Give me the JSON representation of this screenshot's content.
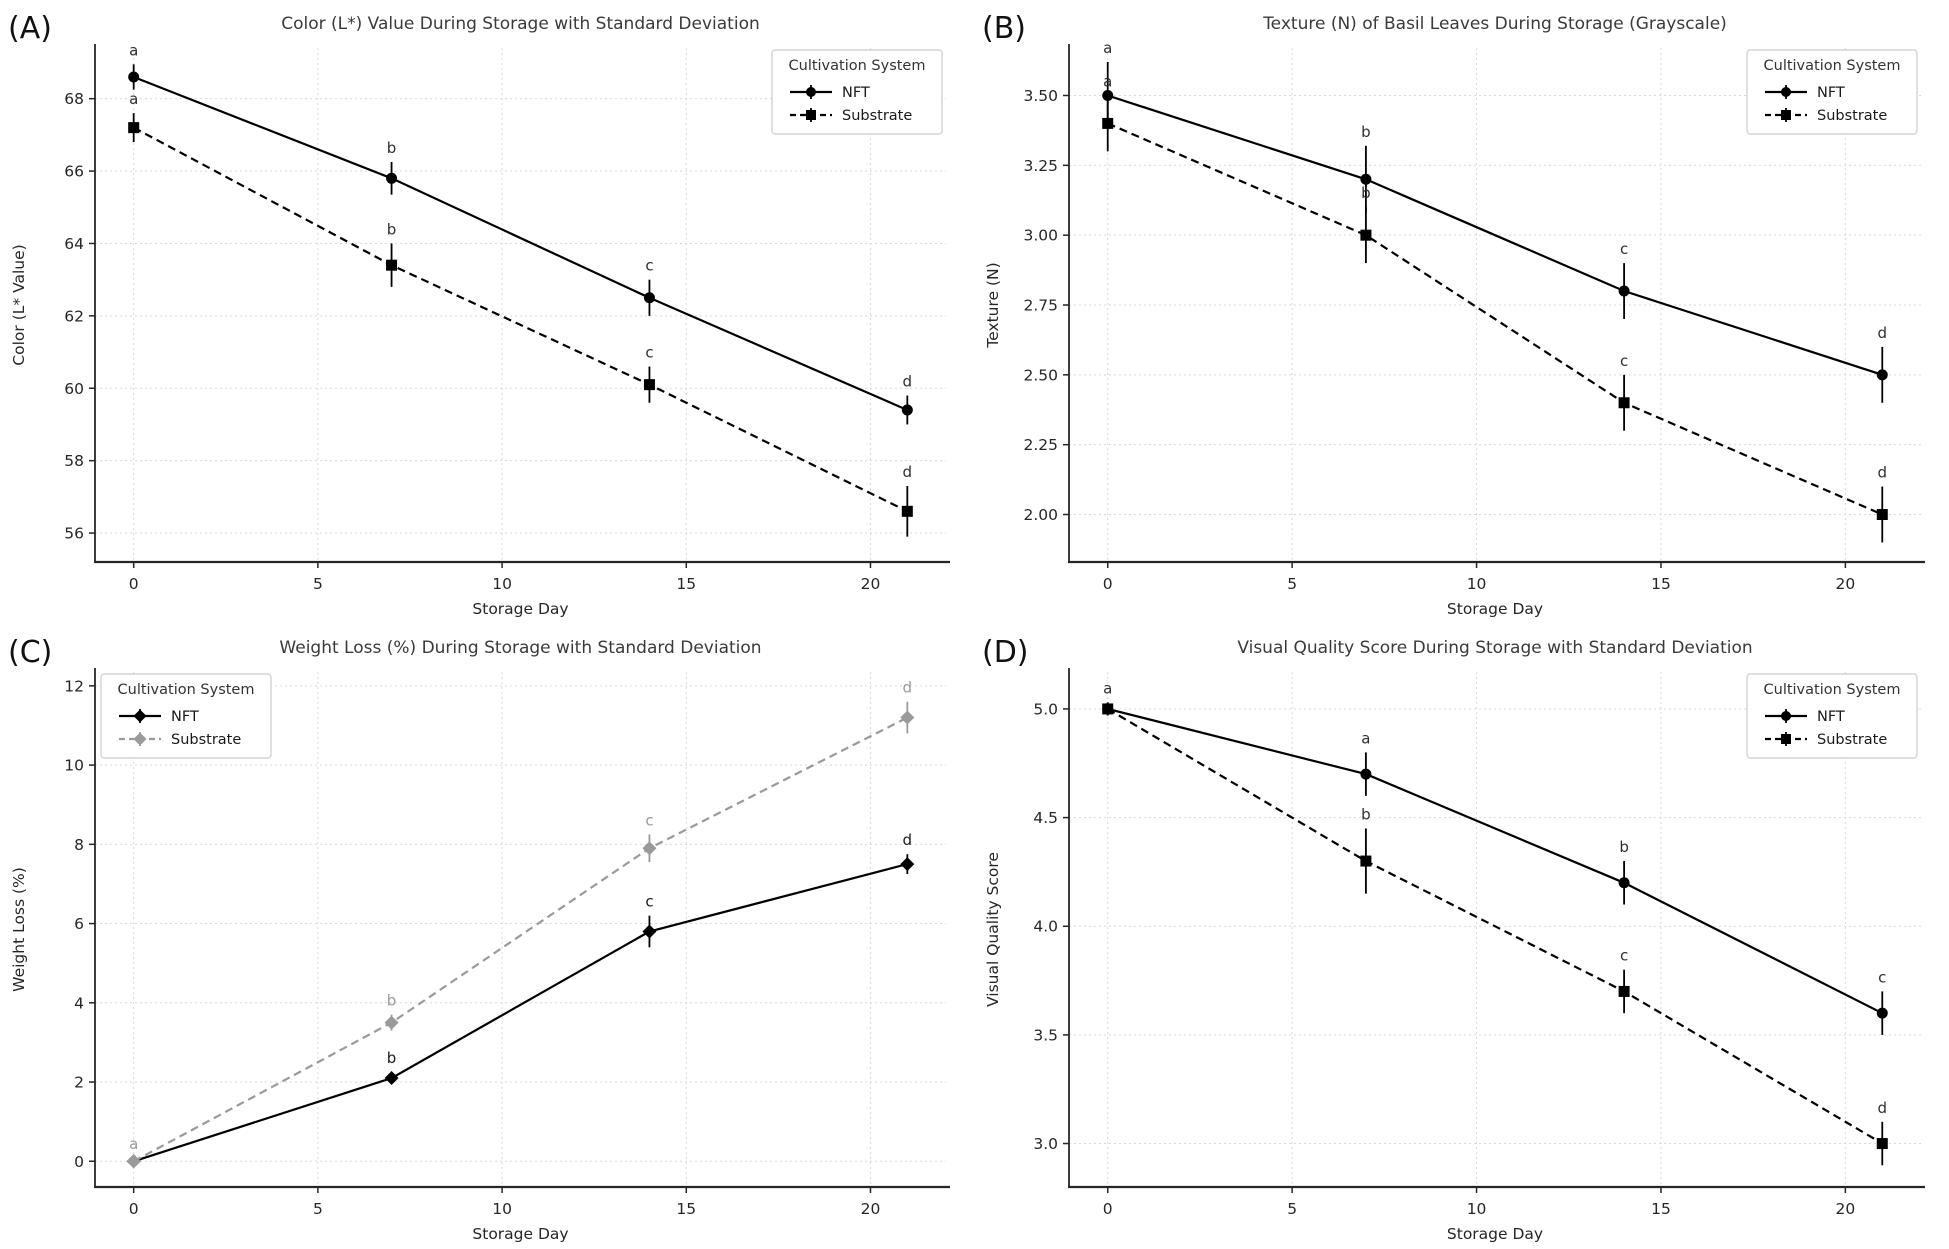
{
  "figure": {
    "description": "Four-panel line figure of basil leaf quality during storage",
    "x_axis_label": "Storage Day",
    "legend_title": "Cultivation System",
    "series_names": [
      "NFT",
      "Substrate"
    ]
  },
  "style": {
    "background": "#ffffff",
    "grid_color": "#d9d9d9",
    "spine_color": "#262626",
    "tick_label_color": "#262626",
    "title_color": "#3a3a3a",
    "panel_label_color": "#111111",
    "legend_border": "#cccccc",
    "legend_text": "#1a1a1a",
    "black_series": "#000000",
    "gray_series": "#9a9a9a"
  },
  "chart_data": [
    {
      "type": "line",
      "panel_label": "(A)",
      "title": "Color (L*) Value During Storage with Standard Deviation",
      "xlabel": "Storage Day",
      "ylabel": "Color (L* Value)",
      "x": [
        0,
        7,
        14,
        21
      ],
      "xlim": [
        -1.05,
        22.05
      ],
      "ylim": [
        55.2,
        69.4
      ],
      "xticks": {
        "values": [
          0,
          5,
          10,
          15,
          20
        ],
        "labels": [
          "0",
          "5",
          "10",
          "15",
          "20"
        ]
      },
      "yticks": {
        "values": [
          56,
          58,
          60,
          62,
          64,
          66,
          68
        ],
        "labels": [
          "56",
          "58",
          "60",
          "62",
          "64",
          "66",
          "68"
        ]
      },
      "grid": true,
      "legend": {
        "title": "Cultivation System",
        "position": "top-right"
      },
      "series": [
        {
          "name": "NFT",
          "values": [
            68.6,
            65.8,
            62.5,
            59.4
          ],
          "errors": [
            0.35,
            0.45,
            0.5,
            0.4
          ],
          "letters": [
            "a",
            "b",
            "c",
            "d"
          ],
          "color": "#000000",
          "linestyle": "solid",
          "marker": "circle",
          "letter_color": "#2f2f2f"
        },
        {
          "name": "Substrate",
          "values": [
            67.2,
            63.4,
            60.1,
            56.6
          ],
          "errors": [
            0.4,
            0.6,
            0.5,
            0.7
          ],
          "letters": [
            "a",
            "b",
            "c",
            "d"
          ],
          "color": "#000000",
          "linestyle": "dashed",
          "marker": "square",
          "letter_color": "#2f2f2f"
        }
      ]
    },
    {
      "type": "line",
      "panel_label": "(B)",
      "title": "Texture (N) of Basil Leaves During Storage (Grayscale)",
      "xlabel": "Storage Day",
      "ylabel": "Texture (N)",
      "x": [
        0,
        7,
        14,
        21
      ],
      "xlim": [
        -1.05,
        22.05
      ],
      "ylim": [
        1.83,
        3.67
      ],
      "xticks": {
        "values": [
          0,
          5,
          10,
          15,
          20
        ],
        "labels": [
          "0",
          "5",
          "10",
          "15",
          "20"
        ]
      },
      "yticks": {
        "values": [
          2.0,
          2.25,
          2.5,
          2.75,
          3.0,
          3.25,
          3.5
        ],
        "labels": [
          "2.00",
          "2.25",
          "2.50",
          "2.75",
          "3.00",
          "3.25",
          "3.50"
        ]
      },
      "grid": true,
      "legend": {
        "title": "Cultivation System",
        "position": "top-right"
      },
      "series": [
        {
          "name": "NFT",
          "values": [
            3.5,
            3.2,
            2.8,
            2.5
          ],
          "errors": [
            0.12,
            0.12,
            0.1,
            0.1
          ],
          "letters": [
            "a",
            "b",
            "c",
            "d"
          ],
          "color": "#000000",
          "linestyle": "solid",
          "marker": "circle",
          "letter_color": "#2f2f2f"
        },
        {
          "name": "Substrate",
          "values": [
            3.4,
            3.0,
            2.4,
            2.0
          ],
          "errors": [
            0.1,
            0.1,
            0.1,
            0.1
          ],
          "letters": [
            "a",
            "b",
            "c",
            "d"
          ],
          "color": "#000000",
          "linestyle": "dashed",
          "marker": "square",
          "letter_color": "#2f2f2f"
        }
      ]
    },
    {
      "type": "line",
      "panel_label": "(C)",
      "title": "Weight Loss (%) During Storage with Standard Deviation",
      "xlabel": "Storage Day",
      "ylabel": "Weight Loss (%)",
      "x": [
        0,
        7,
        14,
        21
      ],
      "xlim": [
        -1.05,
        22.05
      ],
      "ylim": [
        -0.65,
        12.35
      ],
      "xticks": {
        "values": [
          0,
          5,
          10,
          15,
          20
        ],
        "labels": [
          "0",
          "5",
          "10",
          "15",
          "20"
        ]
      },
      "yticks": {
        "values": [
          0,
          2,
          4,
          6,
          8,
          10,
          12
        ],
        "labels": [
          "0",
          "2",
          "4",
          "6",
          "8",
          "10",
          "12"
        ]
      },
      "grid": true,
      "legend": {
        "title": "Cultivation System",
        "position": "top-left"
      },
      "series": [
        {
          "name": "NFT",
          "values": [
            0.0,
            2.1,
            5.8,
            7.5
          ],
          "errors": [
            0.05,
            0.15,
            0.4,
            0.25
          ],
          "letters": [
            "",
            "b",
            "c",
            "d"
          ],
          "color": "#000000",
          "linestyle": "solid",
          "marker": "diamond",
          "letter_color": "#1a1a1a"
        },
        {
          "name": "Substrate",
          "values": [
            0.0,
            3.5,
            7.9,
            11.2
          ],
          "errors": [
            0.08,
            0.2,
            0.35,
            0.4
          ],
          "letters": [
            "a",
            "b",
            "c",
            "d"
          ],
          "color": "#9a9a9a",
          "linestyle": "dashed",
          "marker": "diamond",
          "letter_color": "#9a9a9a"
        }
      ]
    },
    {
      "type": "line",
      "panel_label": "(D)",
      "title": "Visual Quality Score During Storage with Standard Deviation",
      "xlabel": "Storage Day",
      "ylabel": "Visual Quality Score",
      "x": [
        0,
        7,
        14,
        21
      ],
      "xlim": [
        -1.05,
        22.05
      ],
      "ylim": [
        2.8,
        5.17
      ],
      "xticks": {
        "values": [
          0,
          5,
          10,
          15,
          20
        ],
        "labels": [
          "0",
          "5",
          "10",
          "15",
          "20"
        ]
      },
      "yticks": {
        "values": [
          3.0,
          3.5,
          4.0,
          4.5,
          5.0
        ],
        "labels": [
          "3.0",
          "3.5",
          "4.0",
          "4.5",
          "5.0"
        ]
      },
      "grid": true,
      "legend": {
        "title": "Cultivation System",
        "position": "top-right"
      },
      "series": [
        {
          "name": "NFT",
          "values": [
            5.0,
            4.7,
            4.2,
            3.6
          ],
          "errors": [
            0.03,
            0.1,
            0.1,
            0.1
          ],
          "letters": [
            "a",
            "a",
            "b",
            "c"
          ],
          "color": "#000000",
          "linestyle": "solid",
          "marker": "circle",
          "letter_color": "#2f2f2f"
        },
        {
          "name": "Substrate",
          "values": [
            5.0,
            4.3,
            3.7,
            3.0
          ],
          "errors": [
            0.03,
            0.15,
            0.1,
            0.1
          ],
          "letters": [
            "",
            "b",
            "c",
            "d"
          ],
          "color": "#000000",
          "linestyle": "dashed",
          "marker": "square",
          "letter_color": "#2f2f2f"
        }
      ]
    }
  ]
}
